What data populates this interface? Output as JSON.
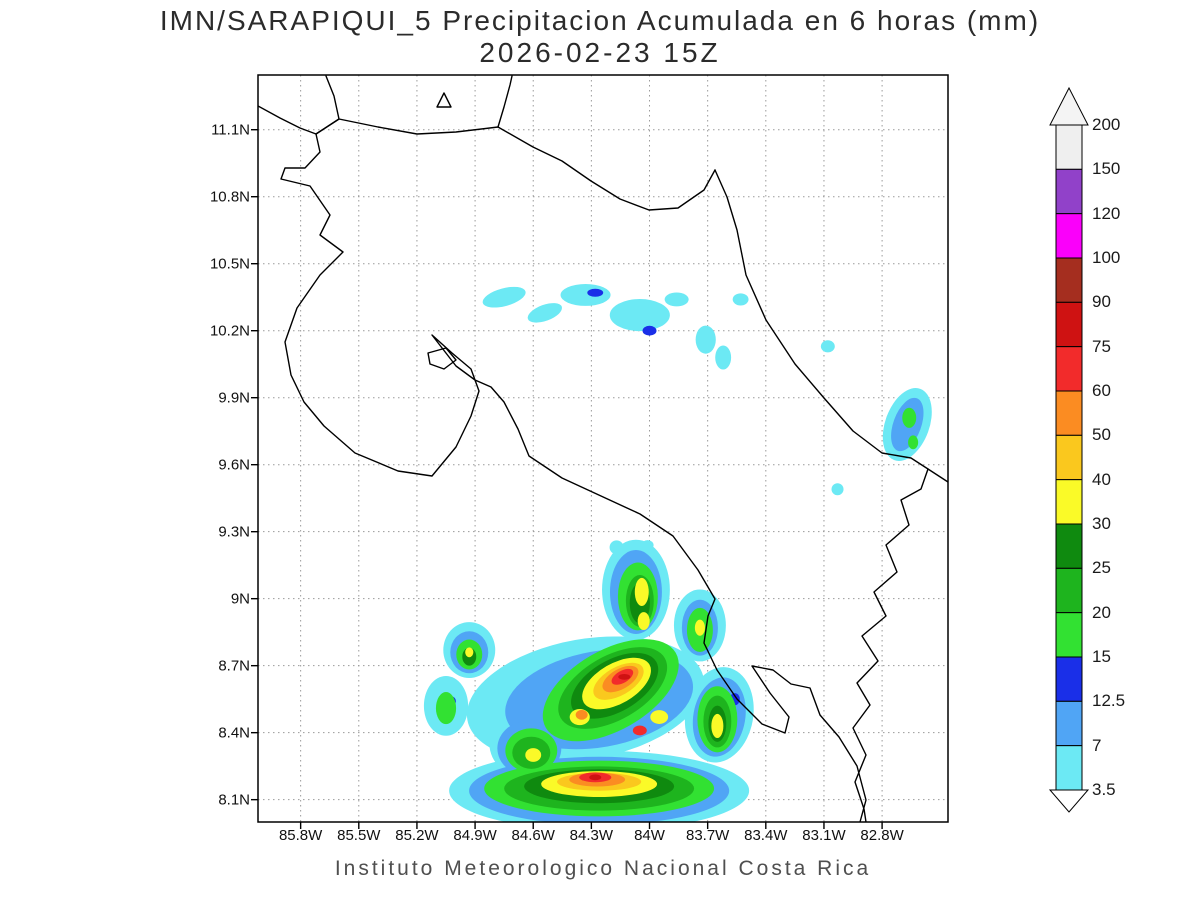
{
  "header": {
    "title_line1": "IMN/SARAPIQUI_5 Precipitacion Acumulada en 6 horas (mm)",
    "title_line2": "2026-02-23 15Z"
  },
  "footer": {
    "caption": "Instituto Meteorologico Nacional Costa Rica"
  },
  "axes": {
    "lat_ticks": [
      {
        "label": "11.1N",
        "value": 11.1
      },
      {
        "label": "10.8N",
        "value": 10.8
      },
      {
        "label": "10.5N",
        "value": 10.5
      },
      {
        "label": "10.2N",
        "value": 10.2
      },
      {
        "label": "9.9N",
        "value": 9.9
      },
      {
        "label": "9.6N",
        "value": 9.6
      },
      {
        "label": "9.3N",
        "value": 9.3
      },
      {
        "label": "9N",
        "value": 9.0
      },
      {
        "label": "8.7N",
        "value": 8.7
      },
      {
        "label": "8.4N",
        "value": 8.4
      },
      {
        "label": "8.1N",
        "value": 8.1
      }
    ],
    "lon_ticks": [
      {
        "label": "85.8W",
        "value": 85.8
      },
      {
        "label": "85.5W",
        "value": 85.5
      },
      {
        "label": "85.2W",
        "value": 85.2
      },
      {
        "label": "84.9W",
        "value": 84.9
      },
      {
        "label": "84.6W",
        "value": 84.6
      },
      {
        "label": "84.3W",
        "value": 84.3
      },
      {
        "label": "84W",
        "value": 84.0
      },
      {
        "label": "83.7W",
        "value": 83.7
      },
      {
        "label": "83.4W",
        "value": 83.4
      },
      {
        "label": "83.1W",
        "value": 83.1
      },
      {
        "label": "82.8W",
        "value": 82.8
      }
    ]
  },
  "colorbar": {
    "boundary_labels_top_to_bottom": [
      "200",
      "150",
      "120",
      "100",
      "90",
      "75",
      "60",
      "50",
      "40",
      "30",
      "25",
      "20",
      "15",
      "12.5",
      "7",
      "3.5"
    ],
    "segment_colors_top_to_bottom": [
      "#EFEFEF",
      "#9141C9",
      "#FA00FA",
      "#A52E1F",
      "#CF1212",
      "#F22B2B",
      "#FB8C22",
      "#FAC81E",
      "#FAFA28",
      "#0F8A0F",
      "#1EB41E",
      "#32E132",
      "#1A2FE8",
      "#50A5F5",
      "#6CE9F4"
    ],
    "arrow_top_color": "#F4F4F4",
    "arrow_bottom_color": "#FFFFFF"
  },
  "chart_data": {
    "type": "heatmap",
    "title": "IMN/SARAPIQUI_5 Precipitacion Acumulada en 6 horas (mm)",
    "subtitle": "2026-02-23 15Z",
    "model": "IMN/SARAPIQUI_5",
    "variable": "Precipitacion Acumulada en 6 horas",
    "units": "mm",
    "valid_time": "2026-02-23 15Z",
    "region": "Costa Rica",
    "legend_position": "right",
    "grid": "dashed",
    "lon_range_w": [
      86.02,
      82.46
    ],
    "lat_range_n": [
      8.0,
      11.345
    ],
    "levels_mm": [
      3.5,
      7,
      12.5,
      15,
      20,
      25,
      30,
      40,
      50,
      60,
      75,
      90,
      100,
      120,
      150,
      200
    ],
    "precip_cells_format": [
      "lon_w",
      "lat_n",
      "rx_deg",
      "ry_deg",
      "rot_deg",
      "value_mm"
    ],
    "precip_cells": [
      [
        84.75,
        10.35,
        0.114,
        0.04,
        -15,
        5
      ],
      [
        84.54,
        10.28,
        0.093,
        0.036,
        -20,
        5
      ],
      [
        84.33,
        10.36,
        0.129,
        0.049,
        0,
        5
      ],
      [
        84.28,
        10.37,
        0.041,
        0.018,
        0,
        13
      ],
      [
        84.05,
        10.27,
        0.155,
        0.072,
        0,
        5
      ],
      [
        84.0,
        10.2,
        0.036,
        0.022,
        0,
        13
      ],
      [
        83.86,
        10.34,
        0.062,
        0.031,
        0,
        5
      ],
      [
        83.71,
        10.16,
        0.052,
        0.063,
        0,
        5
      ],
      [
        83.62,
        10.08,
        0.041,
        0.054,
        0,
        5
      ],
      [
        83.53,
        10.34,
        0.041,
        0.027,
        0,
        5
      ],
      [
        83.08,
        10.13,
        0.036,
        0.027,
        0,
        5
      ],
      [
        82.67,
        9.78,
        0.114,
        0.17,
        20,
        5
      ],
      [
        82.67,
        9.78,
        0.072,
        0.125,
        20,
        10
      ],
      [
        82.66,
        9.81,
        0.036,
        0.045,
        0,
        18
      ],
      [
        82.64,
        9.7,
        0.026,
        0.031,
        0,
        18
      ],
      [
        83.03,
        9.49,
        0.031,
        0.027,
        0,
        5
      ],
      [
        84.07,
        9.04,
        0.175,
        0.224,
        0,
        5
      ],
      [
        84.33,
        8.55,
        0.619,
        0.269,
        -10,
        5
      ],
      [
        83.74,
        8.88,
        0.134,
        0.161,
        0,
        5
      ],
      [
        83.64,
        8.48,
        0.175,
        0.215,
        10,
        5
      ],
      [
        84.93,
        8.77,
        0.134,
        0.125,
        0,
        5
      ],
      [
        85.05,
        8.52,
        0.114,
        0.134,
        0,
        5
      ],
      [
        84.62,
        8.35,
        0.206,
        0.157,
        0,
        5
      ],
      [
        84.26,
        8.14,
        0.774,
        0.179,
        0,
        5
      ],
      [
        84.17,
        9.23,
        0.036,
        0.031,
        0,
        5
      ],
      [
        84.01,
        9.24,
        0.031,
        0.022,
        0,
        5
      ],
      [
        84.07,
        9.03,
        0.134,
        0.188,
        0,
        10
      ],
      [
        84.26,
        8.55,
        0.49,
        0.215,
        -10,
        10
      ],
      [
        83.74,
        8.87,
        0.093,
        0.125,
        0,
        10
      ],
      [
        83.64,
        8.47,
        0.134,
        0.179,
        10,
        10
      ],
      [
        84.93,
        8.76,
        0.098,
        0.094,
        0,
        10
      ],
      [
        84.62,
        8.33,
        0.165,
        0.125,
        0,
        10
      ],
      [
        84.26,
        8.14,
        0.671,
        0.152,
        0,
        10
      ],
      [
        83.56,
        8.55,
        0.026,
        0.027,
        0,
        13
      ],
      [
        85.02,
        8.54,
        0.021,
        0.022,
        0,
        13
      ],
      [
        84.06,
        9.01,
        0.103,
        0.152,
        0,
        18
      ],
      [
        84.2,
        8.59,
        0.387,
        0.179,
        -30,
        18
      ],
      [
        83.74,
        8.86,
        0.067,
        0.099,
        0,
        18
      ],
      [
        83.65,
        8.46,
        0.103,
        0.148,
        0,
        18
      ],
      [
        84.93,
        8.75,
        0.067,
        0.067,
        0,
        18
      ],
      [
        84.61,
        8.32,
        0.134,
        0.099,
        0,
        18
      ],
      [
        84.26,
        8.15,
        0.593,
        0.125,
        0,
        18
      ],
      [
        85.05,
        8.51,
        0.052,
        0.072,
        0,
        18
      ],
      [
        84.05,
        8.99,
        0.072,
        0.116,
        0,
        23
      ],
      [
        84.19,
        8.6,
        0.31,
        0.143,
        -30,
        23
      ],
      [
        83.65,
        8.45,
        0.072,
        0.116,
        0,
        23
      ],
      [
        84.61,
        8.31,
        0.098,
        0.072,
        0,
        23
      ],
      [
        84.26,
        8.15,
        0.49,
        0.099,
        0,
        23
      ],
      [
        84.05,
        8.98,
        0.052,
        0.09,
        0,
        28
      ],
      [
        84.18,
        8.61,
        0.248,
        0.116,
        -30,
        28
      ],
      [
        84.93,
        8.74,
        0.036,
        0.04,
        0,
        28
      ],
      [
        83.65,
        8.44,
        0.046,
        0.081,
        0,
        28
      ],
      [
        84.26,
        8.16,
        0.387,
        0.076,
        0,
        28
      ],
      [
        84.04,
        9.03,
        0.036,
        0.063,
        0,
        35
      ],
      [
        84.03,
        8.9,
        0.031,
        0.04,
        0,
        35
      ],
      [
        84.17,
        8.62,
        0.196,
        0.09,
        -30,
        35
      ],
      [
        84.26,
        8.17,
        0.299,
        0.058,
        0,
        35
      ],
      [
        83.65,
        8.43,
        0.031,
        0.054,
        0,
        35
      ],
      [
        84.6,
        8.3,
        0.041,
        0.031,
        0,
        35
      ],
      [
        84.36,
        8.47,
        0.052,
        0.036,
        0,
        35
      ],
      [
        83.95,
        8.47,
        0.046,
        0.031,
        0,
        35
      ],
      [
        83.74,
        8.87,
        0.026,
        0.036,
        0,
        35
      ],
      [
        84.93,
        8.76,
        0.021,
        0.022,
        0,
        35
      ],
      [
        84.16,
        8.63,
        0.144,
        0.063,
        -30,
        45
      ],
      [
        84.26,
        8.18,
        0.217,
        0.04,
        0,
        45
      ],
      [
        84.15,
        8.64,
        0.103,
        0.045,
        -30,
        55
      ],
      [
        84.27,
        8.19,
        0.144,
        0.031,
        0,
        55
      ],
      [
        84.35,
        8.48,
        0.031,
        0.022,
        0,
        55
      ],
      [
        84.14,
        8.65,
        0.062,
        0.027,
        -30,
        65
      ],
      [
        84.28,
        8.2,
        0.083,
        0.022,
        0,
        65
      ],
      [
        84.05,
        8.41,
        0.036,
        0.022,
        0,
        65
      ],
      [
        84.13,
        8.65,
        0.031,
        0.013,
        0,
        80
      ],
      [
        84.28,
        8.2,
        0.031,
        0.013,
        0,
        80
      ]
    ]
  }
}
